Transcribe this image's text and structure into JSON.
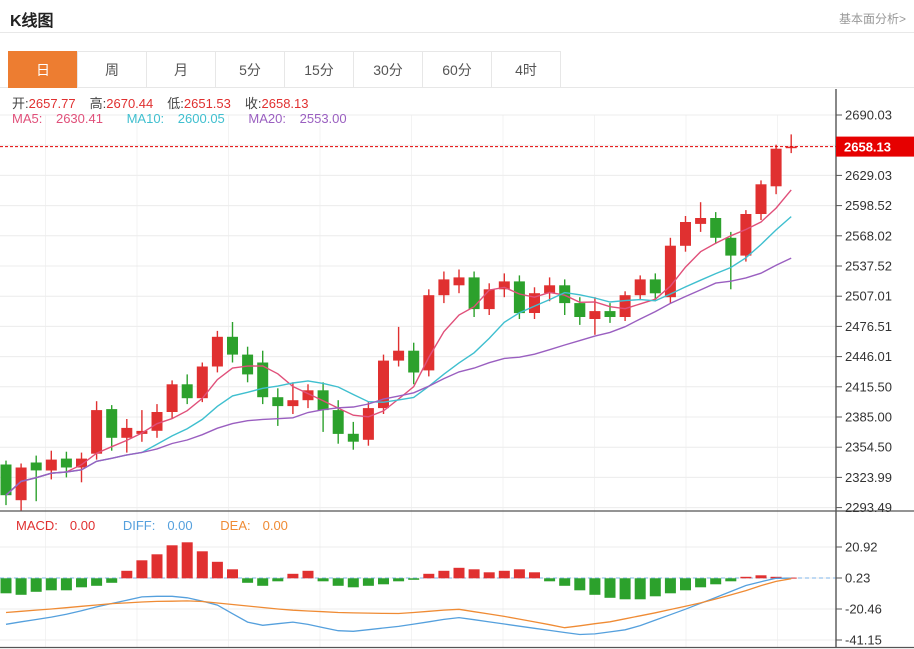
{
  "header": {
    "title": "K线图",
    "link_label": "基本面分析>"
  },
  "toolbar": {
    "tabs": [
      {
        "label": "日",
        "active": true
      },
      {
        "label": "周",
        "active": false
      },
      {
        "label": "月",
        "active": false
      },
      {
        "label": "5分",
        "active": false
      },
      {
        "label": "15分",
        "active": false
      },
      {
        "label": "30分",
        "active": false
      },
      {
        "label": "60分",
        "active": false
      },
      {
        "label": "4时",
        "active": false
      }
    ]
  },
  "info": {
    "open_label": "开:",
    "open": "2657.77",
    "high_label": "高:",
    "high": "2670.44",
    "low_label": "低:",
    "low": "2651.53",
    "close_label": "收:",
    "close": "2658.13",
    "ma5_label": "MA5:",
    "ma5": "2630.41",
    "ma10_label": "MA10:",
    "ma10": "2600.05",
    "ma20_label": "MA20:",
    "ma20": "2553.00"
  },
  "macd_info": {
    "macd_label": "MACD:",
    "macd": "0.00",
    "diff_label": "DIFF:",
    "diff": "0.00",
    "dea_label": "DEA:",
    "dea": "0.00"
  },
  "colors": {
    "up": "#e03030",
    "down": "#2ca12c",
    "ma5": "#e0507a",
    "ma10": "#3fbfcf",
    "ma20": "#9a5fc0",
    "diff": "#55a0dd",
    "dea": "#ef8b34",
    "accent": "#ed7d31",
    "badge": "#e60000",
    "grid": "#ececec",
    "vgrid": "#f3f3f3",
    "axis_line": "#555",
    "axis_text": "#333",
    "price_line": "#e60000",
    "zero_dash": "#7fb6e8"
  },
  "chart_data": {
    "type": "candlestick",
    "title": "K线图 (日)",
    "legend": [
      "MA5",
      "MA10",
      "MA20",
      "MACD",
      "DIFF",
      "DEA"
    ],
    "price_axis": {
      "tick_labels": [
        "2690.03",
        "2629.03",
        "2598.52",
        "2568.02",
        "2537.52",
        "2507.01",
        "2476.51",
        "2446.01",
        "2415.50",
        "2385.00",
        "2354.50",
        "2323.99",
        "2293.49"
      ],
      "gridline_values": [
        2690.03,
        2659.53,
        2629.03,
        2598.52,
        2568.02,
        2537.52,
        2507.01,
        2476.51,
        2446.01,
        2415.5,
        2385.0,
        2354.5,
        2323.99,
        2293.49
      ],
      "range": [
        2293.49,
        2690.03
      ]
    },
    "current_price": 2658.13,
    "current_price_label": "2658.13",
    "ohlc_last": {
      "open": 2657.77,
      "high": 2670.44,
      "low": 2651.53,
      "close": 2658.13
    },
    "ma_windows": [
      5,
      10,
      20
    ],
    "candles": [
      [
        2337,
        2341,
        2296,
        2306
      ],
      [
        2301,
        2338,
        2290,
        2334
      ],
      [
        2339,
        2346,
        2300,
        2331
      ],
      [
        2331,
        2351,
        2322,
        2342
      ],
      [
        2343,
        2350,
        2324,
        2334
      ],
      [
        2334,
        2349,
        2319,
        2343
      ],
      [
        2348,
        2401,
        2342,
        2392
      ],
      [
        2393,
        2397,
        2351,
        2364
      ],
      [
        2364,
        2383,
        2349,
        2374
      ],
      [
        2368,
        2392,
        2360,
        2371
      ],
      [
        2371,
        2398,
        2364,
        2390
      ],
      [
        2390,
        2422,
        2384,
        2418
      ],
      [
        2418,
        2428,
        2398,
        2404
      ],
      [
        2404,
        2440,
        2400,
        2436
      ],
      [
        2436,
        2472,
        2430,
        2466
      ],
      [
        2466,
        2481,
        2440,
        2448
      ],
      [
        2448,
        2456,
        2420,
        2428
      ],
      [
        2440,
        2452,
        2398,
        2405
      ],
      [
        2405,
        2414,
        2376,
        2396
      ],
      [
        2396,
        2420,
        2388,
        2402
      ],
      [
        2402,
        2418,
        2394,
        2412
      ],
      [
        2412,
        2420,
        2370,
        2392
      ],
      [
        2392,
        2402,
        2358,
        2368
      ],
      [
        2368,
        2380,
        2352,
        2360
      ],
      [
        2362,
        2400,
        2356,
        2394
      ],
      [
        2394,
        2448,
        2388,
        2442
      ],
      [
        2442,
        2476,
        2436,
        2452
      ],
      [
        2452,
        2460,
        2418,
        2430
      ],
      [
        2432,
        2514,
        2426,
        2508
      ],
      [
        2508,
        2532,
        2500,
        2524
      ],
      [
        2518,
        2534,
        2510,
        2526
      ],
      [
        2526,
        2532,
        2486,
        2494
      ],
      [
        2494,
        2520,
        2488,
        2514
      ],
      [
        2514,
        2530,
        2506,
        2522
      ],
      [
        2522,
        2528,
        2484,
        2490
      ],
      [
        2490,
        2516,
        2484,
        2510
      ],
      [
        2510,
        2526,
        2502,
        2518
      ],
      [
        2518,
        2524,
        2488,
        2500
      ],
      [
        2500,
        2506,
        2478,
        2486
      ],
      [
        2484,
        2506,
        2468,
        2492
      ],
      [
        2492,
        2500,
        2480,
        2486
      ],
      [
        2486,
        2512,
        2482,
        2508
      ],
      [
        2508,
        2528,
        2504,
        2524
      ],
      [
        2524,
        2530,
        2502,
        2510
      ],
      [
        2506,
        2566,
        2500,
        2558
      ],
      [
        2558,
        2588,
        2552,
        2582
      ],
      [
        2580,
        2602,
        2572,
        2586
      ],
      [
        2586,
        2592,
        2560,
        2566
      ],
      [
        2566,
        2572,
        2514,
        2548
      ],
      [
        2548,
        2594,
        2542,
        2590
      ],
      [
        2590,
        2624,
        2584,
        2620
      ],
      [
        2618,
        2660,
        2610,
        2656
      ],
      [
        2657.77,
        2670.44,
        2651.53,
        2658.13
      ]
    ],
    "macd": {
      "axis_tick_labels": [
        "20.92",
        "0.23",
        "-20.46",
        "-41.15"
      ],
      "range": [
        -41.15,
        20.92
      ],
      "histogram": [
        -10,
        -11,
        -9,
        -8,
        -8,
        -6,
        -5,
        -3,
        5,
        12,
        16,
        22,
        24,
        18,
        11,
        6,
        -3,
        -5,
        -2,
        3,
        5,
        -2,
        -5,
        -6,
        -5,
        -4,
        -2,
        -1,
        3,
        5,
        7,
        6,
        4,
        5,
        6,
        4,
        -2,
        -5,
        -8,
        -11,
        -13,
        -14,
        -14,
        -12,
        -10,
        -8,
        -6,
        -4,
        -2,
        1,
        2,
        1,
        0.5
      ],
      "diff": [
        -30.7,
        -29,
        -27.5,
        -25.9,
        -24,
        -21.6,
        -19.1,
        -16.8,
        -14.6,
        -12.4,
        -12,
        -12,
        -13,
        -15.2,
        -17.9,
        -23.6,
        -29.2,
        -31.4,
        -30.3,
        -29.2,
        -30.8,
        -32.9,
        -35,
        -35.4,
        -34.3,
        -33.2,
        -32.1,
        -30.6,
        -29,
        -27.4,
        -26.2,
        -27.6,
        -29.1,
        -30.5,
        -32,
        -33.4,
        -34.8,
        -36.2,
        -37.5,
        -37.1,
        -35.8,
        -34.4,
        -31.6,
        -27.9,
        -24.3,
        -20.6,
        -16.7,
        -12.8,
        -8.8,
        -4.8,
        -2.3,
        0,
        0.1
      ],
      "dea": [
        -22.8,
        -22,
        -21.2,
        -20.5,
        -19.6,
        -18.7,
        -17.8,
        -16.9,
        -16.4,
        -15.8,
        -15.4,
        -15.3,
        -15.1,
        -15.5,
        -16.5,
        -17.5,
        -18.5,
        -19.5,
        -20.5,
        -21.3,
        -21.8,
        -22.3,
        -22.8,
        -23.1,
        -23.2,
        -23.4,
        -23.5,
        -22.8,
        -22,
        -21.2,
        -20.7,
        -22.3,
        -23.8,
        -25.4,
        -27.2,
        -29.1,
        -31,
        -33,
        -31.7,
        -30.3,
        -29,
        -27,
        -25,
        -23,
        -20.8,
        -18.6,
        -16.4,
        -13.8,
        -11.1,
        -8.2,
        -4.9,
        -2.1,
        -0.3
      ]
    }
  }
}
